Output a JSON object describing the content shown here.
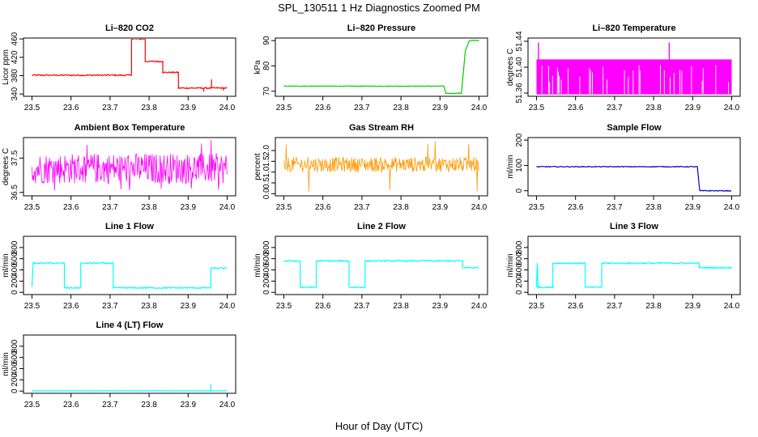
{
  "figure": {
    "title": "SPL_130511  1 Hz Diagnostics Zoomed PM",
    "xlabel": "Hour of Day (UTC)"
  },
  "chart_data": [
    {
      "type": "line",
      "title": "Li–820 CO2",
      "ylabel": "Licor ppm",
      "xlim": [
        23.5,
        24.0
      ],
      "ylim": [
        335,
        462
      ],
      "xticks": [
        "23.5",
        "23.6",
        "23.7",
        "23.8",
        "23.9",
        "24.0"
      ],
      "yticks": [
        340,
        380,
        420,
        460
      ],
      "ytick_labels": [
        "340",
        "380",
        "420",
        "460"
      ],
      "series": [
        {
          "color": "#ff0000",
          "style": "step",
          "noise": 1.5,
          "points": [
            [
              23.5,
              381
            ],
            [
              23.755,
              381
            ],
            [
              23.755,
              460
            ],
            [
              23.79,
              460
            ],
            [
              23.79,
              411
            ],
            [
              23.835,
              411
            ],
            [
              23.835,
              387
            ],
            [
              23.875,
              387
            ],
            [
              23.875,
              353
            ],
            [
              24.0,
              353
            ]
          ],
          "spikes": [
            [
              23.96,
              372
            ],
            [
              23.94,
              345
            ],
            [
              23.99,
              348
            ]
          ]
        }
      ]
    },
    {
      "type": "line",
      "title": "Li–820 Pressure",
      "ylabel": "kPa",
      "xlim": [
        23.5,
        24.0
      ],
      "ylim": [
        68,
        91
      ],
      "xticks": [
        "23.5",
        "23.6",
        "23.7",
        "23.8",
        "23.9",
        "24.0"
      ],
      "yticks": [
        70,
        80,
        90
      ],
      "ytick_labels": [
        "70",
        "80",
        "90"
      ],
      "series": [
        {
          "color": "#00cc00",
          "style": "step",
          "noise": 0.12,
          "points": [
            [
              23.5,
              72
            ],
            [
              23.91,
              72
            ],
            [
              23.915,
              69.2
            ],
            [
              23.955,
              69.2
            ],
            [
              23.965,
              86
            ],
            [
              23.97,
              88
            ],
            [
              23.975,
              90
            ],
            [
              24.0,
              90
            ]
          ]
        }
      ]
    },
    {
      "type": "band",
      "title": "Li–820 Temperature",
      "ylabel": "degrees C",
      "xlim": [
        23.5,
        24.0
      ],
      "ylim": [
        51.355,
        51.445
      ],
      "xticks": [
        "23.5",
        "23.6",
        "23.7",
        "23.8",
        "23.9",
        "24.0"
      ],
      "yticks": [
        51.36,
        51.4,
        51.44
      ],
      "ytick_labels": [
        "51.36",
        "51.40",
        "51.44"
      ],
      "series": [
        {
          "color": "#ff00ff",
          "low": 51.358,
          "high": 51.412,
          "gap_level": 51.385,
          "spikes": [
            [
              23.505,
              51.438
            ],
            [
              23.84,
              51.438
            ]
          ]
        }
      ]
    },
    {
      "type": "noise",
      "title": "Ambient Box Temperature",
      "ylabel": "degrees C",
      "xlim": [
        23.5,
        24.0
      ],
      "ylim": [
        36.4,
        38.1
      ],
      "xticks": [
        "23.5",
        "23.6",
        "23.7",
        "23.8",
        "23.9",
        "24.0"
      ],
      "yticks": [
        36.5,
        37.5
      ],
      "ytick_labels": [
        "36.5",
        "37.5"
      ],
      "series": [
        {
          "color": "#ff00ff",
          "center": 37.2,
          "amp": 0.45,
          "extra_low": 36.55,
          "extra_high": 38.05
        }
      ]
    },
    {
      "type": "noise",
      "title": "Gas Stream RH",
      "ylabel": "percent",
      "xlim": [
        23.5,
        24.0
      ],
      "ylim": [
        -0.1,
        2.6
      ],
      "xticks": [
        "23.5",
        "23.6",
        "23.7",
        "23.8",
        "23.9",
        "24.0"
      ],
      "yticks": [
        0.0,
        0.5,
        1.0,
        1.5,
        2.0
      ],
      "ytick_labels": [
        "0.0",
        "0.5",
        "1.0",
        "1.5",
        "2.0"
      ],
      "series": [
        {
          "color": "#ff9900",
          "center": 1.35,
          "amp": 0.35,
          "extra_low": 0.0,
          "extra_high": 2.45
        }
      ]
    },
    {
      "type": "line",
      "title": "Sample Flow",
      "ylabel": "ml/min",
      "xlim": [
        23.5,
        24.0
      ],
      "ylim": [
        -20,
        210
      ],
      "xticks": [
        "23.5",
        "23.6",
        "23.7",
        "23.8",
        "23.9",
        "24.0"
      ],
      "yticks": [
        0,
        100,
        200
      ],
      "ytick_labels": [
        "0",
        "100",
        "200"
      ],
      "series": [
        {
          "color": "#0000cc",
          "style": "step",
          "noise": 1.5,
          "points": [
            [
              23.5,
              95
            ],
            [
              23.912,
              95
            ],
            [
              23.918,
              0
            ],
            [
              24.0,
              0
            ]
          ]
        }
      ]
    },
    {
      "type": "line",
      "title": "Line 1 Flow",
      "ylabel": "ml/min",
      "xlim": [
        23.5,
        24.0
      ],
      "ylim": [
        -40,
        1000
      ],
      "xticks": [
        "23.5",
        "23.6",
        "23.7",
        "23.8",
        "23.9",
        "24.0"
      ],
      "yticks": [
        0,
        200,
        400,
        600,
        800
      ],
      "ytick_labels": [
        "0",
        "200",
        "400",
        "600",
        "800"
      ],
      "series": [
        {
          "color": "#00ffff",
          "style": "step",
          "noise": 12,
          "points": [
            [
              23.5,
              100
            ],
            [
              23.503,
              520
            ],
            [
              23.583,
              520
            ],
            [
              23.583,
              80
            ],
            [
              23.625,
              80
            ],
            [
              23.625,
              520
            ],
            [
              23.708,
              520
            ],
            [
              23.708,
              80
            ],
            [
              23.958,
              80
            ],
            [
              23.958,
              430
            ],
            [
              24.0,
              430
            ]
          ]
        }
      ]
    },
    {
      "type": "line",
      "title": "Line 2 Flow",
      "ylabel": "ml/min",
      "xlim": [
        23.5,
        24.0
      ],
      "ylim": [
        -40,
        1000
      ],
      "xticks": [
        "23.5",
        "23.6",
        "23.7",
        "23.8",
        "23.9",
        "24.0"
      ],
      "yticks": [
        0,
        200,
        400,
        600,
        800
      ],
      "ytick_labels": [
        "0",
        "200",
        "400",
        "600",
        "800"
      ],
      "series": [
        {
          "color": "#00ffff",
          "style": "step",
          "noise": 12,
          "points": [
            [
              23.5,
              560
            ],
            [
              23.542,
              560
            ],
            [
              23.542,
              90
            ],
            [
              23.583,
              90
            ],
            [
              23.583,
              560
            ],
            [
              23.667,
              560
            ],
            [
              23.667,
              90
            ],
            [
              23.708,
              90
            ],
            [
              23.708,
              560
            ],
            [
              23.958,
              560
            ],
            [
              23.958,
              440
            ],
            [
              24.0,
              440
            ]
          ]
        }
      ]
    },
    {
      "type": "line",
      "title": "Line 3 Flow",
      "ylabel": "ml/min",
      "xlim": [
        23.5,
        24.0
      ],
      "ylim": [
        -40,
        1000
      ],
      "xticks": [
        "23.5",
        "23.6",
        "23.7",
        "23.8",
        "23.9",
        "24.0"
      ],
      "yticks": [
        0,
        200,
        400,
        600,
        800
      ],
      "ytick_labels": [
        "0",
        "200",
        "400",
        "600",
        "800"
      ],
      "series": [
        {
          "color": "#00ffff",
          "style": "step",
          "noise": 12,
          "points": [
            [
              23.5,
              90
            ],
            [
              23.502,
              520
            ],
            [
              23.504,
              90
            ],
            [
              23.542,
              90
            ],
            [
              23.542,
              520
            ],
            [
              23.625,
              520
            ],
            [
              23.625,
              90
            ],
            [
              23.667,
              90
            ],
            [
              23.667,
              520
            ],
            [
              23.917,
              520
            ],
            [
              23.917,
              440
            ],
            [
              24.0,
              440
            ]
          ]
        }
      ]
    },
    {
      "type": "line",
      "title": "Line 4 (LT) Flow",
      "ylabel": "ml/min",
      "xlim": [
        23.5,
        24.0
      ],
      "ylim": [
        -40,
        1000
      ],
      "xticks": [
        "23.5",
        "23.6",
        "23.7",
        "23.8",
        "23.9",
        "24.0"
      ],
      "yticks": [
        0,
        200,
        400,
        600,
        800
      ],
      "ytick_labels": [
        "0",
        "200",
        "400",
        "600",
        "800"
      ],
      "series": [
        {
          "color": "#00ffff",
          "style": "step",
          "noise": 2,
          "points": [
            [
              23.5,
              5
            ],
            [
              24.0,
              5
            ]
          ],
          "spikes": [
            [
              23.958,
              130
            ]
          ]
        }
      ]
    }
  ]
}
